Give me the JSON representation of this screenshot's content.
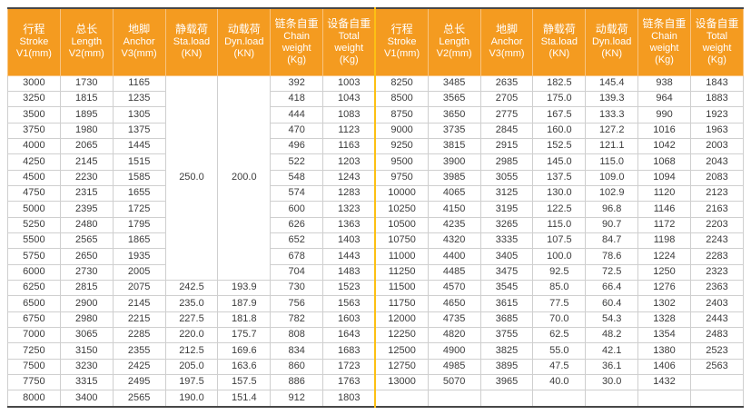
{
  "colors": {
    "header_bg": "#f49b20",
    "header_line": "#f8c37f",
    "divider": "#fdc013",
    "grid": "#cfcfcf",
    "frame": "#474747",
    "text": "#3c3c3c"
  },
  "table": {
    "columns": [
      {
        "zh": "行程",
        "en": "Stroke",
        "unit": "V1(mm)"
      },
      {
        "zh": "总长",
        "en": "Length",
        "unit": "V2(mm)"
      },
      {
        "zh": "地脚",
        "en": "Anchor",
        "unit": "V3(mm)"
      },
      {
        "zh": "静载荷",
        "en": "Sta.load",
        "unit": "(KN)"
      },
      {
        "zh": "动载荷",
        "en": "Dyn.load",
        "unit": "(KN)"
      },
      {
        "zh": "链条自重",
        "en": "Chain weight",
        "unit": "(Kg)"
      },
      {
        "zh": "设备自重",
        "en": "Total weight",
        "unit": "(Kg)"
      }
    ],
    "merged": {
      "sta_load": "250.0",
      "dyn_load": "200.0",
      "rowspan": 13
    },
    "left_rows": [
      [
        "3000",
        "1730",
        "1165",
        null,
        null,
        "392",
        "1003"
      ],
      [
        "3250",
        "1815",
        "1235",
        null,
        null,
        "418",
        "1043"
      ],
      [
        "3500",
        "1895",
        "1305",
        null,
        null,
        "444",
        "1083"
      ],
      [
        "3750",
        "1980",
        "1375",
        null,
        null,
        "470",
        "1123"
      ],
      [
        "4000",
        "2065",
        "1445",
        null,
        null,
        "496",
        "1163"
      ],
      [
        "4250",
        "2145",
        "1515",
        null,
        null,
        "522",
        "1203"
      ],
      [
        "4500",
        "2230",
        "1585",
        null,
        null,
        "548",
        "1243"
      ],
      [
        "4750",
        "2315",
        "1655",
        null,
        null,
        "574",
        "1283"
      ],
      [
        "5000",
        "2395",
        "1725",
        null,
        null,
        "600",
        "1323"
      ],
      [
        "5250",
        "2480",
        "1795",
        null,
        null,
        "626",
        "1363"
      ],
      [
        "5500",
        "2565",
        "1865",
        null,
        null,
        "652",
        "1403"
      ],
      [
        "5750",
        "2650",
        "1935",
        null,
        null,
        "678",
        "1443"
      ],
      [
        "6000",
        "2730",
        "2005",
        null,
        null,
        "704",
        "1483"
      ],
      [
        "6250",
        "2815",
        "2075",
        "242.5",
        "193.9",
        "730",
        "1523"
      ],
      [
        "6500",
        "2900",
        "2145",
        "235.0",
        "187.9",
        "756",
        "1563"
      ],
      [
        "6750",
        "2980",
        "2215",
        "227.5",
        "181.8",
        "782",
        "1603"
      ],
      [
        "7000",
        "3065",
        "2285",
        "220.0",
        "175.7",
        "808",
        "1643"
      ],
      [
        "7250",
        "3150",
        "2355",
        "212.5",
        "169.6",
        "834",
        "1683"
      ],
      [
        "7500",
        "3230",
        "2425",
        "205.0",
        "163.6",
        "860",
        "1723"
      ],
      [
        "7750",
        "3315",
        "2495",
        "197.5",
        "157.5",
        "886",
        "1763"
      ],
      [
        "8000",
        "3400",
        "2565",
        "190.0",
        "151.4",
        "912",
        "1803"
      ]
    ],
    "right_rows": [
      [
        "8250",
        "3485",
        "2635",
        "182.5",
        "145.4",
        "938",
        "1843"
      ],
      [
        "8500",
        "3565",
        "2705",
        "175.0",
        "139.3",
        "964",
        "1883"
      ],
      [
        "8750",
        "3650",
        "2775",
        "167.5",
        "133.3",
        "990",
        "1923"
      ],
      [
        "9000",
        "3735",
        "2845",
        "160.0",
        "127.2",
        "1016",
        "1963"
      ],
      [
        "9250",
        "3815",
        "2915",
        "152.5",
        "121.1",
        "1042",
        "2003"
      ],
      [
        "9500",
        "3900",
        "2985",
        "145.0",
        "115.0",
        "1068",
        "2043"
      ],
      [
        "9750",
        "3985",
        "3055",
        "137.5",
        "109.0",
        "1094",
        "2083"
      ],
      [
        "10000",
        "4065",
        "3125",
        "130.0",
        "102.9",
        "1120",
        "2123"
      ],
      [
        "10250",
        "4150",
        "3195",
        "122.5",
        "96.8",
        "1146",
        "2163"
      ],
      [
        "10500",
        "4235",
        "3265",
        "115.0",
        "90.7",
        "1172",
        "2203"
      ],
      [
        "10750",
        "4320",
        "3335",
        "107.5",
        "84.7",
        "1198",
        "2243"
      ],
      [
        "11000",
        "4400",
        "3405",
        "100.0",
        "78.6",
        "1224",
        "2283"
      ],
      [
        "11250",
        "4485",
        "3475",
        "92.5",
        "72.5",
        "1250",
        "2323"
      ],
      [
        "11500",
        "4570",
        "3545",
        "85.0",
        "66.4",
        "1276",
        "2363"
      ],
      [
        "11750",
        "4650",
        "3615",
        "77.5",
        "60.4",
        "1302",
        "2403"
      ],
      [
        "12000",
        "4735",
        "3685",
        "70.0",
        "54.3",
        "1328",
        "2443"
      ],
      [
        "12250",
        "4820",
        "3755",
        "62.5",
        "48.2",
        "1354",
        "2483"
      ],
      [
        "12500",
        "4900",
        "3825",
        "55.0",
        "42.1",
        "1380",
        "2523"
      ],
      [
        "12750",
        "4985",
        "3895",
        "47.5",
        "36.1",
        "1406",
        "2563"
      ],
      [
        "13000",
        "5070",
        "3965",
        "40.0",
        "30.0",
        "1432",
        ""
      ],
      [
        "",
        "",
        "",
        "",
        "",
        "",
        ""
      ]
    ]
  }
}
